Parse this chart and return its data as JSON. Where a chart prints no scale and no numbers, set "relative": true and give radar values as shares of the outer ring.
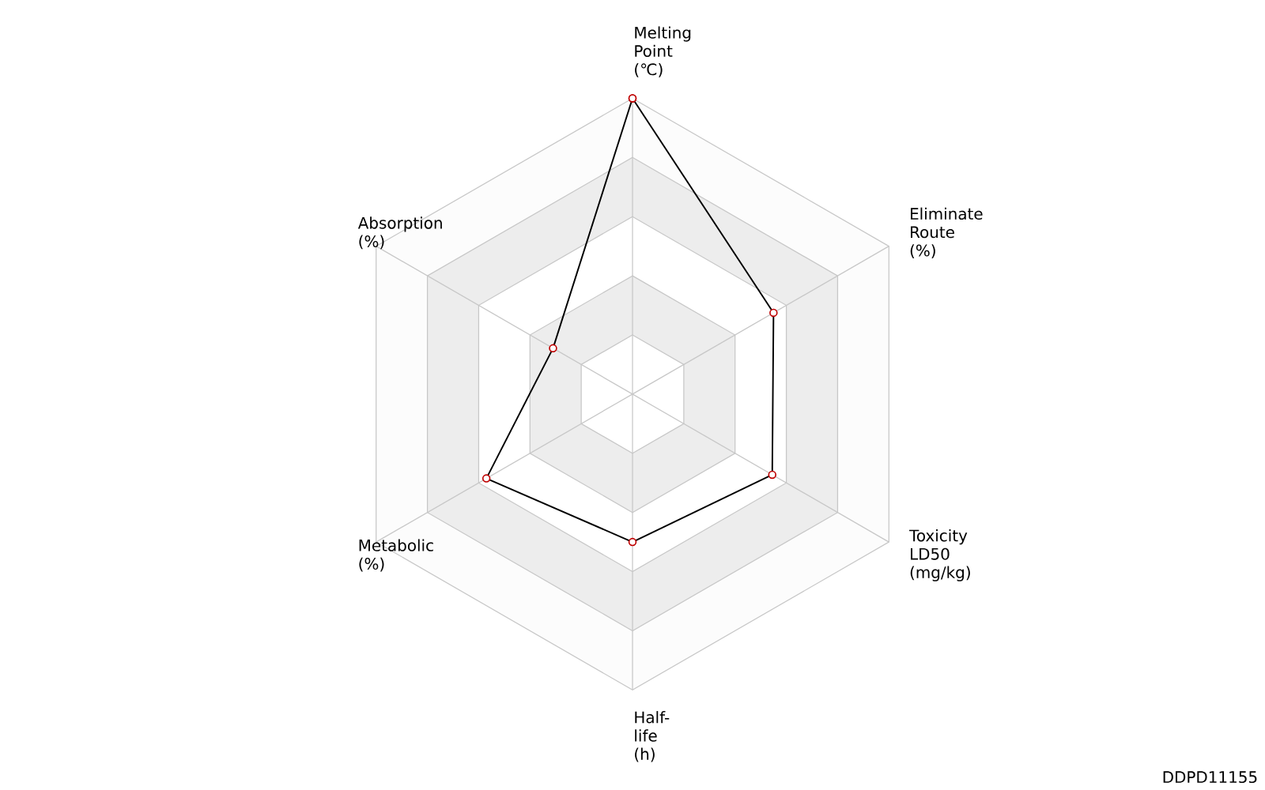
{
  "chart_data": {
    "type": "radar",
    "relative": true,
    "grid": true,
    "marker": "circle",
    "categories": [
      "Melting Point (℃)",
      "Eliminate Route (%)",
      "Toxicity LD50 (mg/kg)",
      "Half-life (h)",
      "Metabolic (%)",
      "Absorption (%)"
    ],
    "series": [
      {
        "color": "#000000",
        "values": [
          1.0,
          0.55,
          0.545,
          0.5,
          0.57,
          0.31
        ]
      }
    ],
    "annotations": [
      "DDPD11155"
    ]
  }
}
